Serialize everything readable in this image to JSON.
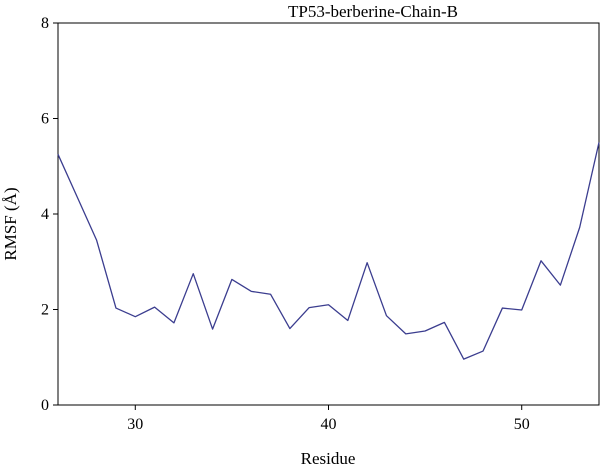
{
  "chart_data": {
    "type": "line",
    "title": "TP53-berberine-Chain-B",
    "xlabel": "Residue",
    "ylabel": "RMSF (Å)",
    "xlim": [
      26,
      54
    ],
    "ylim": [
      0,
      8
    ],
    "xticks": [
      30,
      40,
      50
    ],
    "yticks": [
      0,
      2,
      4,
      6,
      8
    ],
    "grid": false,
    "line_color": "#3b3d8f",
    "x": [
      26,
      27,
      28,
      29,
      30,
      31,
      32,
      33,
      34,
      35,
      36,
      37,
      38,
      39,
      40,
      41,
      42,
      43,
      44,
      45,
      46,
      47,
      48,
      49,
      50,
      51,
      52,
      53,
      54
    ],
    "y": [
      5.25,
      4.35,
      3.45,
      2.03,
      1.85,
      2.05,
      1.72,
      2.75,
      1.59,
      2.63,
      2.38,
      2.32,
      1.6,
      2.04,
      2.1,
      1.77,
      2.98,
      1.87,
      1.49,
      1.55,
      1.73,
      0.96,
      1.13,
      2.03,
      1.99,
      3.02,
      2.51,
      3.72,
      5.5
    ]
  }
}
